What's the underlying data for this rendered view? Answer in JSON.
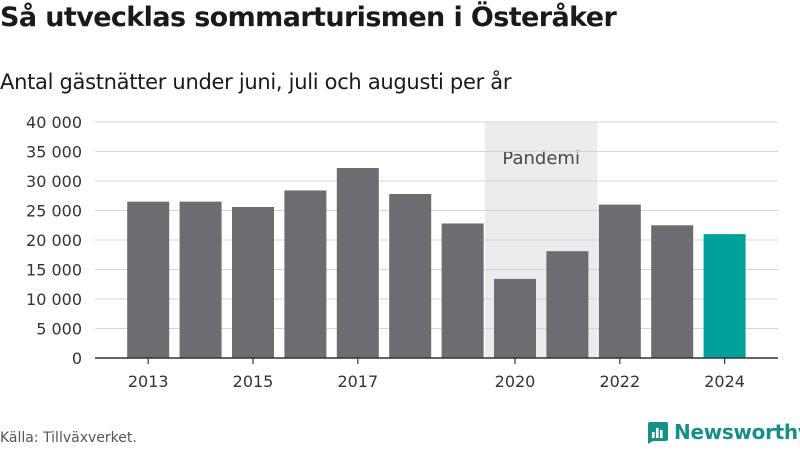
{
  "title": "Så utvecklas sommarturismen i Österåker",
  "subtitle": "Antal gästnätter under juni, juli och augusti per år",
  "source": "Källa: Tillväxverket.",
  "brand": {
    "name": "Newsworthy",
    "icon": "newsworthy-logo-icon"
  },
  "colors": {
    "bar": "#6d6c71",
    "highlight": "#00a19a",
    "shade": "#ececec",
    "grid": "#d4d4d4",
    "axis": "#333333",
    "text": "#333333",
    "brand": "#178f88"
  },
  "chart_data": {
    "type": "bar",
    "categories": [
      "2013",
      "2014",
      "2015",
      "2016",
      "2017",
      "2018",
      "2019",
      "2020",
      "2021",
      "2022",
      "2023",
      "2024"
    ],
    "values": [
      26500,
      26500,
      25600,
      28400,
      32200,
      27800,
      22800,
      13400,
      18100,
      26000,
      22500,
      21000
    ],
    "x_tick_labels": [
      "2013",
      "2015",
      "2017",
      "2020",
      "2022",
      "2024"
    ],
    "y_ticks": [
      0,
      5000,
      10000,
      15000,
      20000,
      25000,
      30000,
      35000,
      40000
    ],
    "y_tick_labels": [
      "0",
      "5 000",
      "10 000",
      "15 000",
      "20 000",
      "25 000",
      "30 000",
      "35 000",
      "40 000"
    ],
    "ylim": [
      0,
      40000
    ],
    "grid": true,
    "xlabel": "",
    "ylabel": "",
    "highlight_category": "2024",
    "annotation": {
      "label": "Pandemi",
      "from": "2020",
      "to": "2021"
    }
  }
}
